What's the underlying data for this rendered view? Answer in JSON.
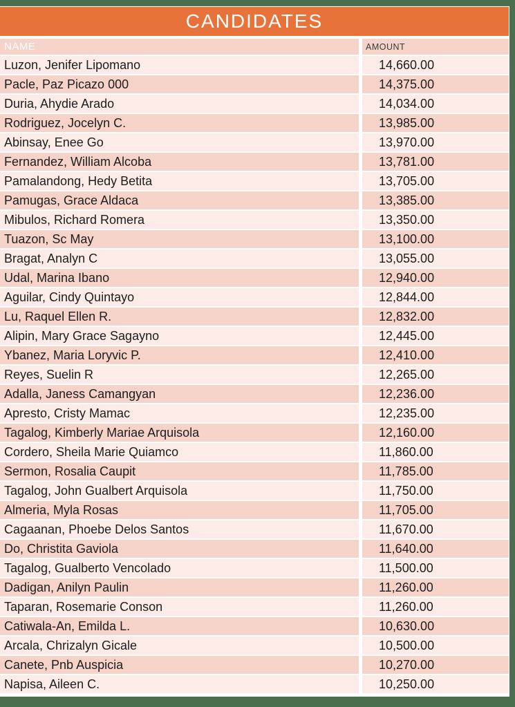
{
  "page": {
    "title": "CANDIDATES"
  },
  "colors": {
    "accent_orange": "#e8733a",
    "frame_green": "#4a6f4e",
    "row_dark_pink": "#f6d3c8",
    "row_light_pink": "#fcebe6"
  },
  "table": {
    "columns": [
      {
        "label": "NAME"
      },
      {
        "label": "AMOUNT"
      }
    ],
    "rows": [
      {
        "name": "Luzon, Jenifer Lipomano",
        "amount": "14,660.00"
      },
      {
        "name": "Pacle, Paz Picazo 000",
        "amount": "14,375.00"
      },
      {
        "name": "Duria, Ahydie Arado",
        "amount": "14,034.00"
      },
      {
        "name": "Rodriguez, Jocelyn C.",
        "amount": "13,985.00"
      },
      {
        "name": "Abinsay, Enee Go",
        "amount": "13,970.00"
      },
      {
        "name": "Fernandez, William Alcoba",
        "amount": "13,781.00"
      },
      {
        "name": "Pamalandong, Hedy Betita",
        "amount": "13,705.00"
      },
      {
        "name": "Pamugas, Grace Aldaca",
        "amount": "13,385.00"
      },
      {
        "name": "Mibulos, Richard Romera",
        "amount": "13,350.00"
      },
      {
        "name": "Tuazon, Sc May",
        "amount": "13,100.00"
      },
      {
        "name": "Bragat, Analyn C",
        "amount": "13,055.00"
      },
      {
        "name": "Udal, Marina Ibano",
        "amount": "12,940.00"
      },
      {
        "name": "Aguilar, Cindy Quintayo",
        "amount": "12,844.00"
      },
      {
        "name": "Lu, Raquel Ellen R.",
        "amount": "12,832.00"
      },
      {
        "name": "Alipin, Mary Grace Sagayno",
        "amount": "12,445.00"
      },
      {
        "name": "Ybanez, Maria Loryvic P.",
        "amount": "12,410.00"
      },
      {
        "name": "Reyes, Suelin R",
        "amount": "12,265.00"
      },
      {
        "name": "Adalla, Janess Camangyan",
        "amount": "12,236.00"
      },
      {
        "name": "Apresto, Cristy Mamac",
        "amount": "12,235.00"
      },
      {
        "name": "Tagalog, Kimberly Mariae Arquisola",
        "amount": "12,160.00"
      },
      {
        "name": "Cordero, Sheila Marie Quiamco",
        "amount": "11,860.00"
      },
      {
        "name": "Sermon, Rosalia Caupit",
        "amount": "11,785.00"
      },
      {
        "name": "Tagalog, John Gualbert Arquisola",
        "amount": "11,750.00"
      },
      {
        "name": "Almeria, Myla Rosas",
        "amount": "11,705.00"
      },
      {
        "name": "Cagaanan, Phoebe Delos Santos",
        "amount": "11,670.00"
      },
      {
        "name": "Do, Christita Gaviola",
        "amount": "11,640.00"
      },
      {
        "name": "Tagalog, Gualberto Vencolado",
        "amount": "11,500.00"
      },
      {
        "name": "Dadigan, Anilyn Paulin",
        "amount": "11,260.00"
      },
      {
        "name": "Taparan, Rosemarie Conson",
        "amount": "11,260.00"
      },
      {
        "name": "Catiwala-An, Emilda L.",
        "amount": "10,630.00"
      },
      {
        "name": "Arcala, Chrizalyn Gicale",
        "amount": "10,500.00"
      },
      {
        "name": "Canete, Pnb Auspicia",
        "amount": "10,270.00"
      },
      {
        "name": "Napisa, Aileen C.",
        "amount": "10,250.00"
      }
    ]
  }
}
